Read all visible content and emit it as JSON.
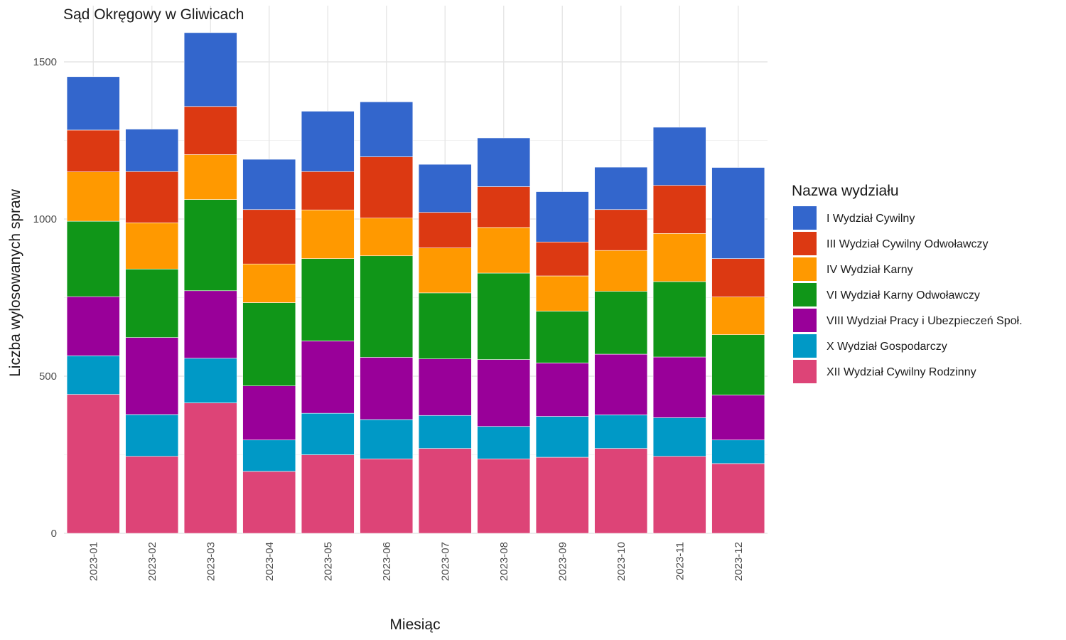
{
  "chart_data": {
    "type": "bar",
    "stacked": true,
    "title": "Sąd Okręgowy w Gliwicach",
    "xlabel": "Miesiąc",
    "ylabel": "Liczba wylosowanych spraw",
    "ylim": [
      0,
      1600
    ],
    "yticks": [
      0,
      500,
      1000,
      1500
    ],
    "grid": true,
    "legend_title": "Nazwa wydziału",
    "legend_position": "right",
    "categories": [
      "2023-01",
      "2023-02",
      "2023-03",
      "2023-04",
      "2023-05",
      "2023-06",
      "2023-07",
      "2023-08",
      "2023-09",
      "2023-10",
      "2023-11",
      "2023-12"
    ],
    "series": [
      {
        "name": "XII Wydział Cywilny Rodzinny",
        "color": "#DD4477",
        "values": [
          442,
          245,
          415,
          197,
          250,
          237,
          270,
          237,
          242,
          270,
          245,
          222
        ]
      },
      {
        "name": "X Wydział Gospodarczy",
        "color": "#0099C6",
        "values": [
          123,
          133,
          142,
          100,
          132,
          125,
          105,
          103,
          130,
          107,
          123,
          75
        ]
      },
      {
        "name": "VIII Wydział Pracy i Ubezpieczeń Społ.",
        "color": "#990099",
        "values": [
          188,
          245,
          215,
          172,
          230,
          198,
          180,
          213,
          170,
          193,
          193,
          143
        ]
      },
      {
        "name": "VI Wydział Karny Odwoławczy",
        "color": "#109618",
        "values": [
          240,
          218,
          290,
          265,
          262,
          323,
          210,
          275,
          165,
          200,
          240,
          192
        ]
      },
      {
        "name": "IV Wydział Karny",
        "color": "#FF9900",
        "values": [
          157,
          147,
          143,
          123,
          155,
          120,
          143,
          145,
          112,
          130,
          153,
          120
        ]
      },
      {
        "name": "III Wydział Cywilny Odwoławczy",
        "color": "#DC3912",
        "values": [
          133,
          163,
          153,
          173,
          122,
          195,
          113,
          130,
          108,
          130,
          153,
          122
        ]
      },
      {
        "name": "I Wydział Cywilny",
        "color": "#3366CC",
        "values": [
          170,
          135,
          235,
          160,
          192,
          175,
          153,
          155,
          160,
          135,
          185,
          290
        ]
      }
    ],
    "legend_order": [
      "I Wydział Cywilny",
      "III Wydział Cywilny Odwoławczy",
      "IV Wydział Karny",
      "VI Wydział Karny Odwoławczy",
      "VIII Wydział Pracy i Ubezpieczeń Społ.",
      "X Wydział Gospodarczy",
      "XII Wydział Cywilny Rodzinny"
    ]
  }
}
